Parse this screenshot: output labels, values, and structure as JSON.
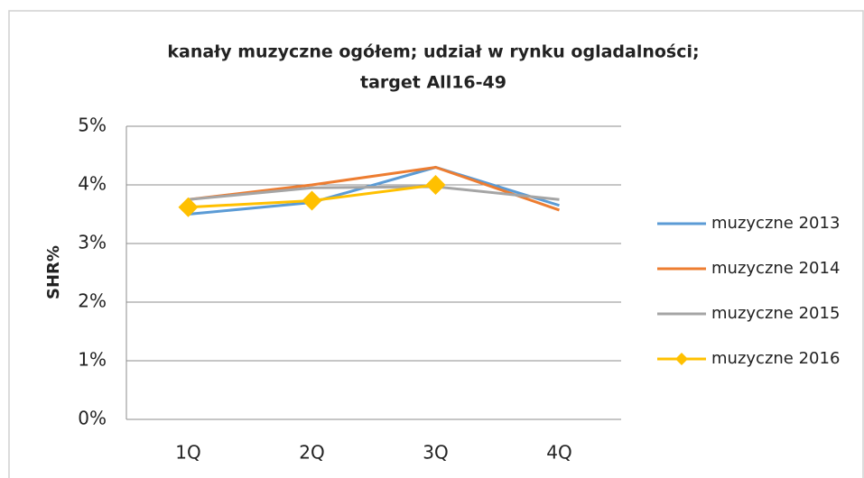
{
  "chart_data": {
    "type": "line",
    "title": [
      "kanały muzyczne ogółem; udział w rynku ogladalności;",
      "target All16-49"
    ],
    "y_label": "SHR%",
    "categories": [
      "1Q",
      "2Q",
      "3Q",
      "4Q"
    ],
    "series": [
      {
        "name": "muzyczne 2013",
        "color": "#5b9bd5",
        "values": [
          3.5,
          3.7,
          4.3,
          3.65
        ]
      },
      {
        "name": "muzyczne 2014",
        "color": "#ed7d31",
        "values": [
          3.75,
          4.0,
          4.3,
          3.57
        ]
      },
      {
        "name": "muzyczne 2015",
        "color": "#a5a5a5",
        "values": [
          3.75,
          3.95,
          3.97,
          3.75
        ]
      },
      {
        "name": "muzyczne 2016",
        "color": "#ffc000",
        "marker": "diamond",
        "values": [
          3.62,
          3.73,
          4.0,
          null
        ]
      }
    ],
    "ylim": [
      0,
      5
    ],
    "yticks": [
      {
        "value": 0,
        "label": "0%"
      },
      {
        "value": 1,
        "label": "1%"
      },
      {
        "value": 2,
        "label": "2%"
      },
      {
        "value": 3,
        "label": "3%"
      },
      {
        "value": 4,
        "label": "4%"
      },
      {
        "value": 5,
        "label": "5%"
      }
    ],
    "grid": true,
    "legend": "right"
  }
}
